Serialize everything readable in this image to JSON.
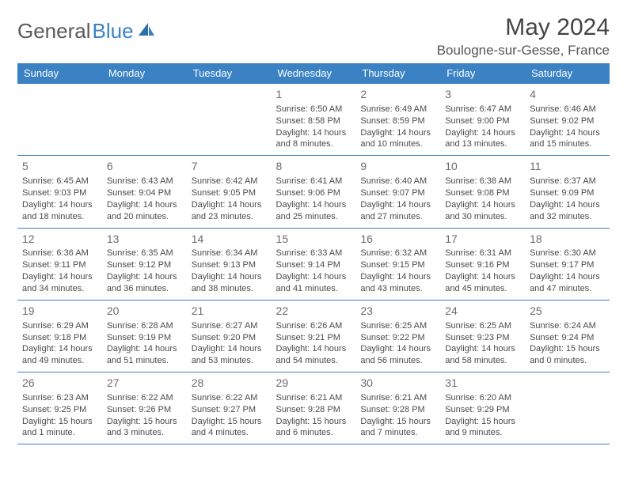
{
  "brand": {
    "part1": "General",
    "part2": "Blue"
  },
  "title": "May 2024",
  "location": "Boulogne-sur-Gesse, France",
  "colors": {
    "header_bg": "#3b82c4",
    "header_text": "#ffffff",
    "border": "#3b82c4"
  },
  "weekdays": [
    "Sunday",
    "Monday",
    "Tuesday",
    "Wednesday",
    "Thursday",
    "Friday",
    "Saturday"
  ],
  "weeks": [
    [
      null,
      null,
      null,
      {
        "n": "1",
        "sr": "6:50 AM",
        "ss": "8:58 PM",
        "dl": "14 hours and 8 minutes."
      },
      {
        "n": "2",
        "sr": "6:49 AM",
        "ss": "8:59 PM",
        "dl": "14 hours and 10 minutes."
      },
      {
        "n": "3",
        "sr": "6:47 AM",
        "ss": "9:00 PM",
        "dl": "14 hours and 13 minutes."
      },
      {
        "n": "4",
        "sr": "6:46 AM",
        "ss": "9:02 PM",
        "dl": "14 hours and 15 minutes."
      }
    ],
    [
      {
        "n": "5",
        "sr": "6:45 AM",
        "ss": "9:03 PM",
        "dl": "14 hours and 18 minutes."
      },
      {
        "n": "6",
        "sr": "6:43 AM",
        "ss": "9:04 PM",
        "dl": "14 hours and 20 minutes."
      },
      {
        "n": "7",
        "sr": "6:42 AM",
        "ss": "9:05 PM",
        "dl": "14 hours and 23 minutes."
      },
      {
        "n": "8",
        "sr": "6:41 AM",
        "ss": "9:06 PM",
        "dl": "14 hours and 25 minutes."
      },
      {
        "n": "9",
        "sr": "6:40 AM",
        "ss": "9:07 PM",
        "dl": "14 hours and 27 minutes."
      },
      {
        "n": "10",
        "sr": "6:38 AM",
        "ss": "9:08 PM",
        "dl": "14 hours and 30 minutes."
      },
      {
        "n": "11",
        "sr": "6:37 AM",
        "ss": "9:09 PM",
        "dl": "14 hours and 32 minutes."
      }
    ],
    [
      {
        "n": "12",
        "sr": "6:36 AM",
        "ss": "9:11 PM",
        "dl": "14 hours and 34 minutes."
      },
      {
        "n": "13",
        "sr": "6:35 AM",
        "ss": "9:12 PM",
        "dl": "14 hours and 36 minutes."
      },
      {
        "n": "14",
        "sr": "6:34 AM",
        "ss": "9:13 PM",
        "dl": "14 hours and 38 minutes."
      },
      {
        "n": "15",
        "sr": "6:33 AM",
        "ss": "9:14 PM",
        "dl": "14 hours and 41 minutes."
      },
      {
        "n": "16",
        "sr": "6:32 AM",
        "ss": "9:15 PM",
        "dl": "14 hours and 43 minutes."
      },
      {
        "n": "17",
        "sr": "6:31 AM",
        "ss": "9:16 PM",
        "dl": "14 hours and 45 minutes."
      },
      {
        "n": "18",
        "sr": "6:30 AM",
        "ss": "9:17 PM",
        "dl": "14 hours and 47 minutes."
      }
    ],
    [
      {
        "n": "19",
        "sr": "6:29 AM",
        "ss": "9:18 PM",
        "dl": "14 hours and 49 minutes."
      },
      {
        "n": "20",
        "sr": "6:28 AM",
        "ss": "9:19 PM",
        "dl": "14 hours and 51 minutes."
      },
      {
        "n": "21",
        "sr": "6:27 AM",
        "ss": "9:20 PM",
        "dl": "14 hours and 53 minutes."
      },
      {
        "n": "22",
        "sr": "6:26 AM",
        "ss": "9:21 PM",
        "dl": "14 hours and 54 minutes."
      },
      {
        "n": "23",
        "sr": "6:25 AM",
        "ss": "9:22 PM",
        "dl": "14 hours and 56 minutes."
      },
      {
        "n": "24",
        "sr": "6:25 AM",
        "ss": "9:23 PM",
        "dl": "14 hours and 58 minutes."
      },
      {
        "n": "25",
        "sr": "6:24 AM",
        "ss": "9:24 PM",
        "dl": "15 hours and 0 minutes."
      }
    ],
    [
      {
        "n": "26",
        "sr": "6:23 AM",
        "ss": "9:25 PM",
        "dl": "15 hours and 1 minute."
      },
      {
        "n": "27",
        "sr": "6:22 AM",
        "ss": "9:26 PM",
        "dl": "15 hours and 3 minutes."
      },
      {
        "n": "28",
        "sr": "6:22 AM",
        "ss": "9:27 PM",
        "dl": "15 hours and 4 minutes."
      },
      {
        "n": "29",
        "sr": "6:21 AM",
        "ss": "9:28 PM",
        "dl": "15 hours and 6 minutes."
      },
      {
        "n": "30",
        "sr": "6:21 AM",
        "ss": "9:28 PM",
        "dl": "15 hours and 7 minutes."
      },
      {
        "n": "31",
        "sr": "6:20 AM",
        "ss": "9:29 PM",
        "dl": "15 hours and 9 minutes."
      },
      null
    ]
  ],
  "labels": {
    "sunrise": "Sunrise: ",
    "sunset": "Sunset: ",
    "daylight": "Daylight: "
  }
}
